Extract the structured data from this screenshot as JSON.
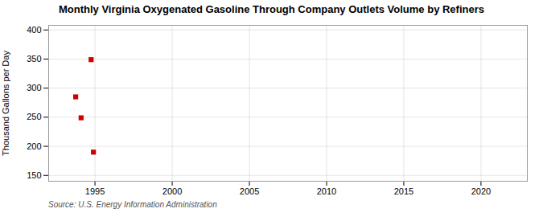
{
  "chart_data": {
    "type": "scatter",
    "title": "Monthly Virginia Oxygenated Gasoline Through Company Outlets Volume by Refiners",
    "ylabel": "Thousand Gallons per Day",
    "source": "Source: U.S. Energy Information Administration",
    "x": [
      1993.75,
      1994.75,
      1994.1,
      1994.9
    ],
    "values": [
      285,
      349,
      249,
      190
    ],
    "color": "#cc0000",
    "marker": "square",
    "xlim": [
      1992,
      2023
    ],
    "ylim": [
      140,
      408
    ],
    "xticks": [
      1995,
      2000,
      2005,
      2010,
      2015,
      2020
    ],
    "yticks": [
      150,
      200,
      250,
      300,
      350,
      400
    ],
    "grid": true
  }
}
